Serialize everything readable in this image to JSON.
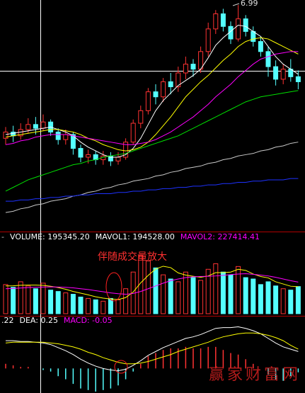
{
  "chart_data": [
    {
      "type": "candlestick",
      "annotation": "6.99",
      "ylim": [
        5.2,
        7.03
      ],
      "up_color": "#ff3232",
      "down_color": "#54ffff",
      "open": [
        5.93,
        5.98,
        5.95,
        6.0,
        6.04,
        6.01,
        6.06,
        5.98,
        5.92,
        5.96,
        5.85,
        5.78,
        5.8,
        5.76,
        5.79,
        5.75,
        5.78,
        5.9,
        6.05,
        6.15,
        6.3,
        6.26,
        6.38,
        6.34,
        6.45,
        6.52,
        6.48,
        6.62,
        6.8,
        6.92,
        6.82,
        6.72,
        6.88,
        6.78,
        6.7,
        6.62,
        6.5,
        6.4,
        6.48,
        6.42
      ],
      "close": [
        5.98,
        5.95,
        6.0,
        6.04,
        6.01,
        6.06,
        5.98,
        5.92,
        5.96,
        5.85,
        5.78,
        5.8,
        5.76,
        5.79,
        5.75,
        5.78,
        5.9,
        6.05,
        6.15,
        6.3,
        6.26,
        6.38,
        6.34,
        6.45,
        6.52,
        6.48,
        6.62,
        6.8,
        6.92,
        6.82,
        6.72,
        6.88,
        6.78,
        6.7,
        6.62,
        6.5,
        6.4,
        6.48,
        6.42,
        6.38
      ],
      "low": [
        5.88,
        5.9,
        5.92,
        5.97,
        5.96,
        5.99,
        5.95,
        5.88,
        5.88,
        5.8,
        5.74,
        5.73,
        5.72,
        5.72,
        5.71,
        5.72,
        5.76,
        5.88,
        6.01,
        6.12,
        6.2,
        6.22,
        6.28,
        6.3,
        6.4,
        6.42,
        6.45,
        6.58,
        6.76,
        6.78,
        6.68,
        6.7,
        6.74,
        6.66,
        6.58,
        6.42,
        6.35,
        6.36,
        6.38,
        6.32
      ],
      "high": [
        6.02,
        6.03,
        6.05,
        6.09,
        6.1,
        6.12,
        6.08,
        6.01,
        6.0,
        5.98,
        5.88,
        5.84,
        5.83,
        5.83,
        5.82,
        5.82,
        5.93,
        6.08,
        6.19,
        6.33,
        6.36,
        6.41,
        6.45,
        6.5,
        6.58,
        6.56,
        6.66,
        6.85,
        6.95,
        6.96,
        6.86,
        6.99,
        6.91,
        6.82,
        6.74,
        6.66,
        6.55,
        6.52,
        6.56,
        6.47
      ],
      "series": [
        {
          "color": "#ffffff",
          "values": [
            5.96,
            5.97,
            5.98,
            5.99,
            6.0,
            6.01,
            6.02,
            6.0,
            5.98,
            5.95,
            5.9,
            5.86,
            5.83,
            5.8,
            5.78,
            5.78,
            5.8,
            5.85,
            5.93,
            6.04,
            6.15,
            6.23,
            6.29,
            6.35,
            6.39,
            6.43,
            6.48,
            6.57,
            6.67,
            6.73,
            6.78,
            6.83,
            6.82,
            6.78,
            6.74,
            6.66,
            6.58,
            6.52,
            6.48,
            6.44
          ]
        },
        {
          "color": "#ffff00",
          "values": [
            5.94,
            5.95,
            5.96,
            5.97,
            5.98,
            5.99,
            6.0,
            6.0,
            5.99,
            5.98,
            5.96,
            5.93,
            5.91,
            5.88,
            5.86,
            5.84,
            5.83,
            5.84,
            5.86,
            5.9,
            5.96,
            6.03,
            6.1,
            6.18,
            6.26,
            6.32,
            6.38,
            6.43,
            6.49,
            6.55,
            6.6,
            6.66,
            6.7,
            6.72,
            6.73,
            6.72,
            6.69,
            6.66,
            6.63,
            6.6
          ]
        },
        {
          "color": "#ff00ff",
          "values": [
            5.88,
            5.89,
            5.91,
            5.92,
            5.94,
            5.95,
            5.96,
            5.96,
            5.96,
            5.95,
            5.94,
            5.93,
            5.92,
            5.91,
            5.9,
            5.89,
            5.88,
            5.88,
            5.89,
            5.9,
            5.92,
            5.95,
            5.98,
            6.02,
            6.06,
            6.1,
            6.15,
            6.2,
            6.26,
            6.31,
            6.36,
            6.42,
            6.47,
            6.52,
            6.56,
            6.58,
            6.6,
            6.61,
            6.62,
            6.62
          ]
        },
        {
          "color": "#00e000",
          "values": [
            5.51,
            5.54,
            5.57,
            5.6,
            5.62,
            5.64,
            5.66,
            5.68,
            5.7,
            5.72,
            5.73,
            5.75,
            5.76,
            5.78,
            5.79,
            5.8,
            5.81,
            5.83,
            5.85,
            5.87,
            5.89,
            5.91,
            5.93,
            5.95,
            5.98,
            6.01,
            6.04,
            6.07,
            6.1,
            6.13,
            6.16,
            6.19,
            6.22,
            6.24,
            6.26,
            6.27,
            6.28,
            6.29,
            6.3,
            6.31
          ]
        },
        {
          "color": "#c8c8c8",
          "values": [
            5.34,
            5.35,
            5.37,
            5.38,
            5.4,
            5.41,
            5.43,
            5.44,
            5.45,
            5.47,
            5.48,
            5.5,
            5.51,
            5.53,
            5.54,
            5.56,
            5.57,
            5.59,
            5.6,
            5.61,
            5.63,
            5.64,
            5.66,
            5.67,
            5.69,
            5.7,
            5.71,
            5.73,
            5.74,
            5.76,
            5.77,
            5.79,
            5.8,
            5.81,
            5.83,
            5.84,
            5.86,
            5.87,
            5.89,
            5.9
          ]
        },
        {
          "color": "#1e32ff",
          "values": [
            5.43,
            5.43,
            5.44,
            5.44,
            5.45,
            5.45,
            5.46,
            5.46,
            5.47,
            5.47,
            5.48,
            5.48,
            5.49,
            5.49,
            5.49,
            5.5,
            5.5,
            5.51,
            5.51,
            5.52,
            5.52,
            5.53,
            5.53,
            5.54,
            5.54,
            5.55,
            5.55,
            5.56,
            5.56,
            5.57,
            5.57,
            5.58,
            5.58,
            5.59,
            5.59,
            5.6,
            5.6,
            5.6,
            5.61,
            5.61
          ]
        }
      ]
    },
    {
      "type": "volume",
      "annotation": "伴随成交量放大",
      "ylim": [
        0,
        500000
      ],
      "legend": [
        {
          "text": "-",
          "color": "#c8c8c8"
        },
        {
          "text": "VOLUME: 195345.20",
          "color": "#ffffff"
        },
        {
          "text": "MAVOL1: 194528.00",
          "color": "#ffffff"
        },
        {
          "text": "MAVOL2: 227414.41",
          "color": "#ff00ff"
        }
      ],
      "values": [
        210000,
        190000,
        230000,
        200000,
        180000,
        220000,
        170000,
        160000,
        150000,
        140000,
        120000,
        110000,
        100000,
        90000,
        110000,
        100000,
        180000,
        300000,
        420000,
        380000,
        330000,
        280000,
        250000,
        230000,
        300000,
        260000,
        240000,
        320000,
        360000,
        300000,
        280000,
        340000,
        260000,
        250000,
        210000,
        230000,
        200000,
        180000,
        170000,
        195345.2
      ],
      "series": [
        {
          "color": "#ffff00",
          "values": [
            200000,
            201000,
            205000,
            206000,
            206000,
            204000,
            198000,
            188000,
            176000,
            160000,
            148000,
            136000,
            122000,
            112000,
            106000,
            102000,
            116000,
            156000,
            222000,
            276000,
            322000,
            342000,
            332000,
            294000,
            278000,
            270000,
            262000,
            272000,
            296000,
            296000,
            300000,
            320000,
            312000,
            286000,
            268000,
            258000,
            230000,
            214000,
            198000,
            194528
          ]
        },
        {
          "color": "#ff00ff",
          "values": [
            180000,
            182000,
            185000,
            188000,
            190000,
            192000,
            193000,
            192000,
            190000,
            186000,
            180000,
            174000,
            166000,
            158000,
            150000,
            144000,
            140000,
            146000,
            160000,
            180000,
            200000,
            220000,
            238000,
            250000,
            260000,
            266000,
            268000,
            270000,
            272000,
            276000,
            282000,
            286000,
            288000,
            284000,
            278000,
            272000,
            262000,
            250000,
            238000,
            227414.41
          ]
        }
      ]
    },
    {
      "type": "macd",
      "ylim": [
        -0.3,
        0.6
      ],
      "legend": [
        {
          "text": ".22",
          "color": "#ffffff"
        },
        {
          "text": "DEA: 0.25",
          "color": "#ffffff"
        },
        {
          "text": "MACD: -0.05",
          "color": "#ff00ff"
        }
      ],
      "values": [
        0.06,
        0.04,
        0.02,
        0.02,
        0.0,
        -0.02,
        -0.04,
        -0.1,
        -0.14,
        -0.2,
        -0.26,
        -0.28,
        -0.3,
        -0.28,
        -0.26,
        -0.22,
        -0.14,
        -0.04,
        0.06,
        0.16,
        0.2,
        0.24,
        0.26,
        0.26,
        0.28,
        0.26,
        0.26,
        0.28,
        0.28,
        0.24,
        0.2,
        0.18,
        0.12,
        0.06,
        0.0,
        -0.08,
        -0.14,
        -0.16,
        -0.1,
        -0.05
      ],
      "series": [
        {
          "color": "#ffffff",
          "values": [
            0.36,
            0.36,
            0.35,
            0.35,
            0.34,
            0.33,
            0.31,
            0.27,
            0.23,
            0.18,
            0.12,
            0.07,
            0.03,
            0.0,
            -0.02,
            -0.03,
            -0.01,
            0.04,
            0.1,
            0.17,
            0.22,
            0.27,
            0.31,
            0.35,
            0.39,
            0.41,
            0.44,
            0.48,
            0.52,
            0.53,
            0.53,
            0.54,
            0.52,
            0.49,
            0.45,
            0.39,
            0.33,
            0.28,
            0.25,
            0.22
          ]
        },
        {
          "color": "#ffff00",
          "values": [
            0.33,
            0.34,
            0.34,
            0.34,
            0.34,
            0.34,
            0.33,
            0.32,
            0.3,
            0.28,
            0.25,
            0.21,
            0.18,
            0.14,
            0.11,
            0.08,
            0.06,
            0.06,
            0.07,
            0.09,
            0.12,
            0.15,
            0.18,
            0.22,
            0.25,
            0.28,
            0.31,
            0.34,
            0.38,
            0.41,
            0.43,
            0.45,
            0.46,
            0.46,
            0.45,
            0.43,
            0.4,
            0.36,
            0.3,
            0.25
          ]
        }
      ]
    }
  ],
  "watermark": "赢家财富网"
}
